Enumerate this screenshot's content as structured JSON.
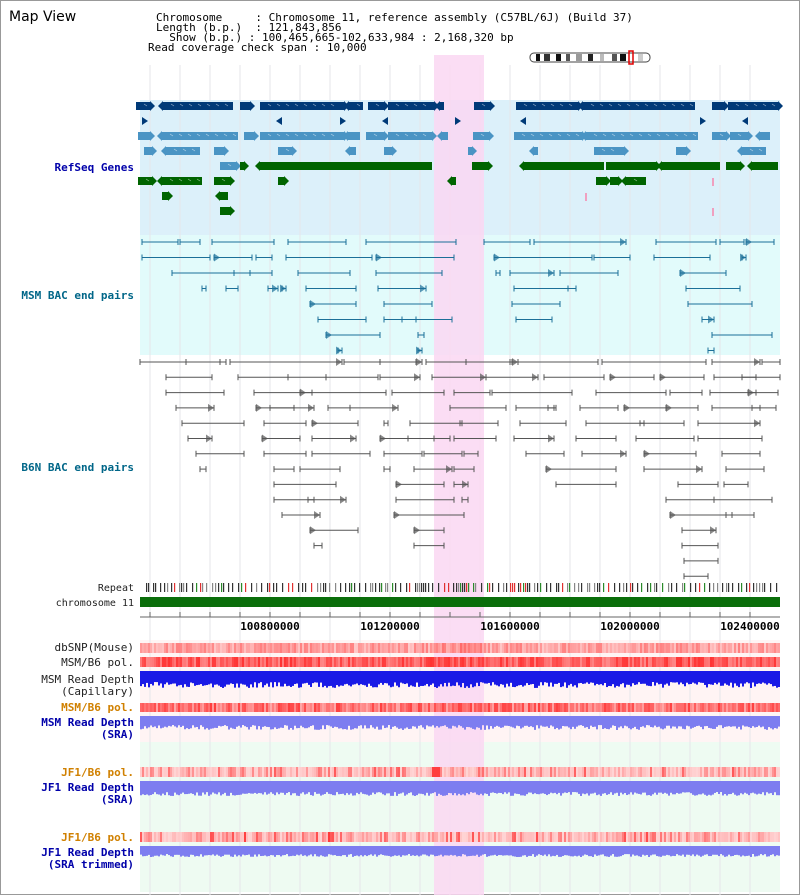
{
  "title": "Map View",
  "info": {
    "chromosome_label": "Chromosome",
    "chromosome_value": "Chromosome 11, reference assembly (C57BL/6J) (Build 37)",
    "length_label": "Length (b.p.)",
    "length_value": "121,843,856",
    "show_label": "Show (b.p.)",
    "show_value": "100,465,665-102,633,984 : 2,168,320 bp",
    "span_label": "Read coverage check span",
    "span_value": "10,000"
  },
  "tracks": {
    "refseq": "RefSeq Genes",
    "msm_bac": "MSM BAC end pairs",
    "b6n_bac": "B6N BAC end pairs",
    "repeat": "Repeat",
    "chromosome": "chromosome 11",
    "dbsnp": "dbSNP(Mouse)",
    "msm_b6_pol_1": "MSM/B6 pol.",
    "msm_depth_cap_1": "MSM Read Depth",
    "msm_depth_cap_2": "(Capillary)",
    "msm_b6_pol_2": "MSM/B6 pol.",
    "msm_depth_sra_1": "MSM Read Depth",
    "msm_depth_sra_2": "(SRA)",
    "jf1_b6_pol_1": "JF1/B6 pol.",
    "jf1_depth_sra_1": "JF1 Read Depth",
    "jf1_depth_sra_2": "(SRA)",
    "jf1_b6_pol_2": "JF1/B6 pol.",
    "jf1_depth_trim_1": "JF1 Read Depth",
    "jf1_depth_trim_2": "(SRA trimmed)"
  },
  "ruler": {
    "ticks": [
      "100800000",
      "101200000",
      "101600000",
      "102000000",
      "102400000"
    ]
  },
  "colors": {
    "refseq_bg": "#dcf0fa",
    "msm_bg": "#e2fbfb",
    "highlight": "#fad7f2",
    "refseq_dark": "#003a78",
    "refseq_light": "#4a94c4",
    "refseq_green": "#006400",
    "msm_pair": "#1b6f98",
    "b6n_pair": "#555555",
    "chromosome": "#0a6e0a",
    "depth_blue": "#1a1ae6",
    "depth_light": "#7d7df0"
  }
}
